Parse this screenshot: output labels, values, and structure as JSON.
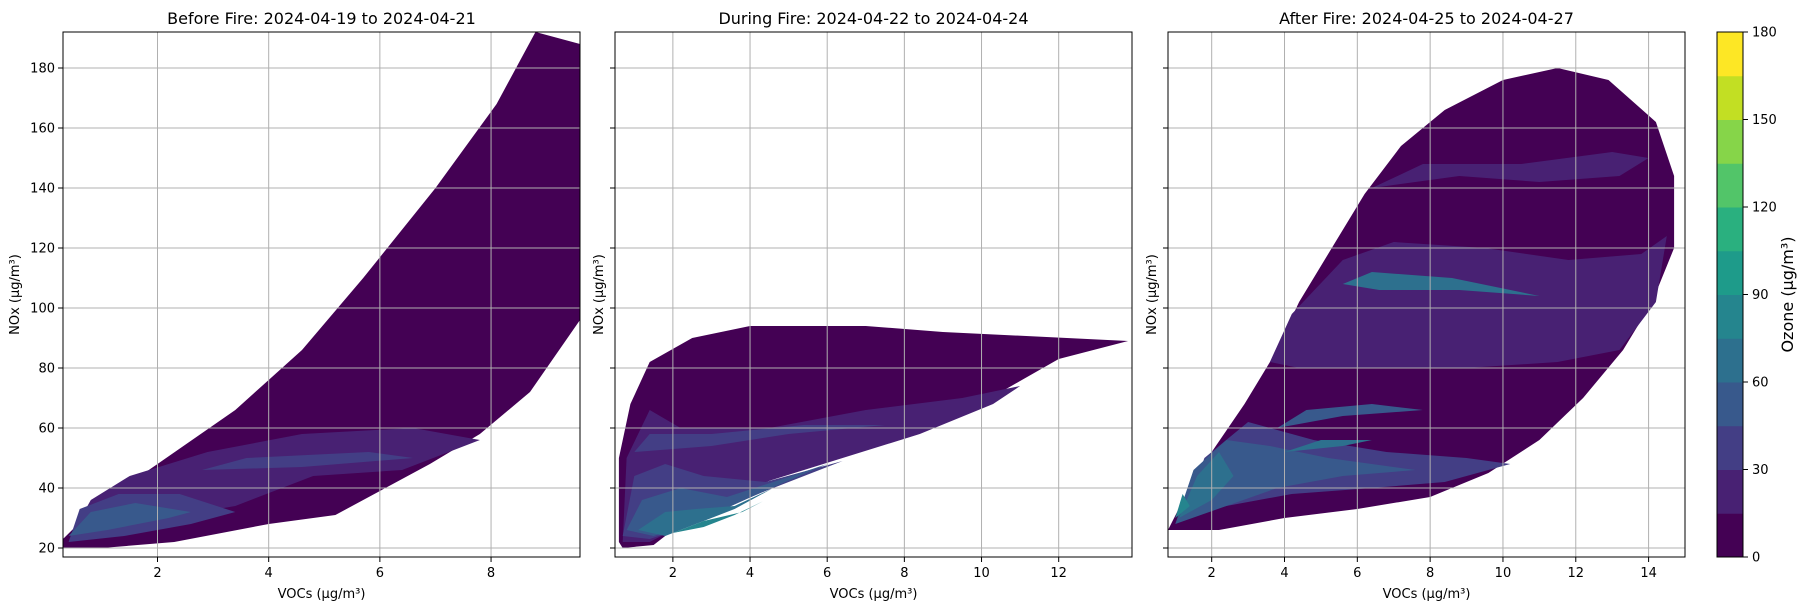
{
  "chart_data": [
    {
      "type": "contour",
      "title": "Before Fire: 2024-04-19 to 2024-04-21",
      "xlabel": "VOCs (µg/m³)",
      "ylabel": "NOx (µg/m³)",
      "xlim": [
        0.3,
        9.6
      ],
      "ylim": [
        17,
        192
      ],
      "xticks": [
        2,
        4,
        6,
        8
      ],
      "yticks": [
        20,
        40,
        60,
        80,
        100,
        120,
        140,
        160,
        180
      ],
      "grid": true,
      "region": [
        [
          0.3,
          23
        ],
        [
          0.9,
          34
        ],
        [
          2.0,
          48
        ],
        [
          3.4,
          66
        ],
        [
          4.6,
          86
        ],
        [
          5.7,
          110
        ],
        [
          7.0,
          140
        ],
        [
          8.1,
          168
        ],
        [
          8.8,
          192
        ],
        [
          9.6,
          188
        ],
        [
          9.6,
          96
        ],
        [
          8.7,
          72
        ],
        [
          7.8,
          58
        ],
        [
          6.9,
          48
        ],
        [
          5.2,
          31
        ],
        [
          4.0,
          28
        ],
        [
          2.3,
          22
        ],
        [
          1.0,
          20
        ],
        [
          0.3,
          20
        ]
      ],
      "patches": [
        {
          "level": 15,
          "points": [
            [
              0.5,
              26
            ],
            [
              1.5,
              28
            ],
            [
              3.4,
              34
            ],
            [
              4.8,
              44
            ],
            [
              6.4,
              46
            ],
            [
              7.8,
              56
            ],
            [
              6.6,
              60
            ],
            [
              4.6,
              58
            ],
            [
              2.9,
              52
            ],
            [
              1.5,
              44
            ],
            [
              0.8,
              36
            ]
          ]
        },
        {
          "level": 30,
          "points": [
            [
              0.4,
              22
            ],
            [
              1.4,
              24
            ],
            [
              2.6,
              28
            ],
            [
              3.4,
              32
            ],
            [
              2.4,
              38
            ],
            [
              1.3,
              38
            ],
            [
              0.6,
              33
            ]
          ]
        },
        {
          "level": 45,
          "points": [
            [
              0.4,
              24
            ],
            [
              1.1,
              26
            ],
            [
              2.2,
              30
            ],
            [
              2.6,
              32
            ],
            [
              1.6,
              35
            ],
            [
              0.8,
              32
            ]
          ]
        },
        {
          "level": 30,
          "points": [
            [
              2.8,
              46
            ],
            [
              4.6,
              47
            ],
            [
              6.6,
              50
            ],
            [
              5.8,
              52
            ],
            [
              3.6,
              50
            ]
          ]
        }
      ]
    },
    {
      "type": "contour",
      "title": "During Fire: 2024-04-22 to 2024-04-24",
      "xlabel": "VOCs (µg/m³)",
      "ylabel": "NOx (µg/m³)",
      "xlim": [
        0.5,
        13.9
      ],
      "ylim": [
        17,
        192
      ],
      "xticks": [
        2,
        4,
        6,
        8,
        10,
        12
      ],
      "yticks": [
        20,
        40,
        60,
        80,
        100,
        120,
        140,
        160,
        180
      ],
      "grid": true,
      "region": [
        [
          0.6,
          22
        ],
        [
          0.6,
          50
        ],
        [
          0.9,
          68
        ],
        [
          1.4,
          82
        ],
        [
          2.5,
          90
        ],
        [
          4.0,
          94
        ],
        [
          7.0,
          94
        ],
        [
          9.0,
          92
        ],
        [
          13.8,
          89
        ],
        [
          12.0,
          83
        ],
        [
          10.5,
          72
        ],
        [
          8.6,
          60
        ],
        [
          6.5,
          51
        ],
        [
          4.6,
          43
        ],
        [
          3.2,
          35
        ],
        [
          2.2,
          28
        ],
        [
          1.5,
          21
        ],
        [
          0.7,
          20
        ]
      ],
      "patches": [
        {
          "level": 15,
          "points": [
            [
              0.7,
              22
            ],
            [
              0.8,
              50
            ],
            [
              1.4,
              66
            ],
            [
              2.2,
              60
            ],
            [
              4.5,
              60
            ],
            [
              7.0,
              66
            ],
            [
              9.5,
              70
            ],
            [
              11.0,
              74
            ],
            [
              10.3,
              68
            ],
            [
              8.4,
              58
            ],
            [
              6.4,
              50
            ],
            [
              4.4,
              42
            ],
            [
              3.0,
              34
            ],
            [
              2.0,
              26
            ],
            [
              1.4,
              22
            ]
          ]
        },
        {
          "level": 30,
          "points": [
            [
              0.7,
              24
            ],
            [
              1.0,
              44
            ],
            [
              1.8,
              48
            ],
            [
              2.8,
              44
            ],
            [
              4.4,
              42
            ],
            [
              6.4,
              49
            ],
            [
              4.4,
              39
            ],
            [
              3.1,
              32
            ],
            [
              2.1,
              26
            ],
            [
              1.4,
              23
            ]
          ]
        },
        {
          "level": 30,
          "points": [
            [
              1.0,
              52
            ],
            [
              3.0,
              54
            ],
            [
              5.0,
              58
            ],
            [
              7.5,
              61
            ],
            [
              5.4,
              61
            ],
            [
              3.0,
              58
            ],
            [
              1.4,
              58
            ]
          ]
        },
        {
          "level": 45,
          "points": [
            [
              0.8,
              26
            ],
            [
              1.2,
              36
            ],
            [
              2.2,
              40
            ],
            [
              3.4,
              37
            ],
            [
              4.6,
              42
            ],
            [
              6.0,
              48
            ],
            [
              4.2,
              38
            ],
            [
              3.0,
              31
            ],
            [
              2.2,
              27
            ],
            [
              1.5,
              24
            ]
          ]
        },
        {
          "level": 60,
          "points": [
            [
              1.1,
              26
            ],
            [
              1.8,
              32
            ],
            [
              2.6,
              33
            ],
            [
              3.6,
              34
            ],
            [
              4.6,
              40
            ],
            [
              3.6,
              33
            ],
            [
              2.6,
              28
            ],
            [
              1.8,
              24
            ]
          ]
        },
        {
          "level": 75,
          "points": [
            [
              2.0,
              25
            ],
            [
              2.8,
              29
            ],
            [
              3.8,
              32
            ],
            [
              4.4,
              36
            ],
            [
              3.6,
              31
            ],
            [
              2.8,
              27
            ]
          ]
        }
      ]
    },
    {
      "type": "contour",
      "title": "After Fire: 2024-04-25 to 2024-04-27",
      "xlabel": "VOCs (µg/m³)",
      "ylabel": "NOx (µg/m³)",
      "xlim": [
        0.8,
        15.0
      ],
      "ylim": [
        17,
        192
      ],
      "xticks": [
        2,
        4,
        6,
        8,
        10,
        12,
        14
      ],
      "yticks": [
        20,
        40,
        60,
        80,
        100,
        120,
        140,
        160,
        180
      ],
      "grid": true,
      "region": [
        [
          0.8,
          26
        ],
        [
          1.3,
          38
        ],
        [
          2.0,
          52
        ],
        [
          2.9,
          68
        ],
        [
          3.7,
          84
        ],
        [
          4.4,
          102
        ],
        [
          5.3,
          120
        ],
        [
          6.2,
          138
        ],
        [
          7.2,
          154
        ],
        [
          8.4,
          166
        ],
        [
          10.0,
          176
        ],
        [
          11.5,
          180
        ],
        [
          12.9,
          176
        ],
        [
          14.2,
          162
        ],
        [
          14.7,
          144
        ],
        [
          14.7,
          120
        ],
        [
          14.1,
          102
        ],
        [
          13.3,
          86
        ],
        [
          12.2,
          70
        ],
        [
          11.0,
          56
        ],
        [
          9.6,
          45
        ],
        [
          8.0,
          37
        ],
        [
          6.0,
          33
        ],
        [
          4.0,
          30
        ],
        [
          2.2,
          26
        ],
        [
          0.8,
          26
        ]
      ],
      "patches": [
        {
          "level": 15,
          "points": [
            [
              3.6,
              82
            ],
            [
              4.2,
              98
            ],
            [
              5.6,
              116
            ],
            [
              7.0,
              122
            ],
            [
              9.5,
              120
            ],
            [
              11.8,
              116
            ],
            [
              13.8,
              118
            ],
            [
              14.5,
              124
            ],
            [
              14.2,
              102
            ],
            [
              13.2,
              86
            ],
            [
              11.5,
              82
            ],
            [
              9.0,
              80
            ],
            [
              6.0,
              80
            ],
            [
              4.4,
              80
            ]
          ]
        },
        {
          "level": 15,
          "points": [
            [
              6.4,
              140
            ],
            [
              8.8,
              144
            ],
            [
              11.0,
              142
            ],
            [
              13.2,
              144
            ],
            [
              14.0,
              150
            ],
            [
              13.0,
              152
            ],
            [
              10.5,
              148
            ],
            [
              7.8,
              148
            ]
          ]
        },
        {
          "level": 30,
          "points": [
            [
              1.2,
              30
            ],
            [
              2.4,
              34
            ],
            [
              4.2,
              38
            ],
            [
              6.4,
              40
            ],
            [
              8.4,
              42
            ],
            [
              10.2,
              48
            ],
            [
              9.0,
              50
            ],
            [
              6.8,
              52
            ],
            [
              4.8,
              56
            ],
            [
              3.0,
              62
            ],
            [
              1.8,
              50
            ]
          ]
        },
        {
          "level": 45,
          "points": [
            [
              1.0,
              28
            ],
            [
              2.4,
              34
            ],
            [
              3.8,
              40
            ],
            [
              5.6,
              44
            ],
            [
              7.6,
              46
            ],
            [
              5.2,
              50
            ],
            [
              3.6,
              54
            ],
            [
              2.4,
              56
            ],
            [
              1.5,
              46
            ]
          ]
        },
        {
          "level": 45,
          "points": [
            [
              3.8,
              60
            ],
            [
              5.6,
              64
            ],
            [
              7.8,
              66
            ],
            [
              6.4,
              68
            ],
            [
              4.6,
              66
            ]
          ]
        },
        {
          "level": 60,
          "points": [
            [
              1.1,
              30
            ],
            [
              2.0,
              36
            ],
            [
              2.6,
              44
            ],
            [
              2.2,
              52
            ],
            [
              1.6,
              44
            ]
          ]
        },
        {
          "level": 60,
          "points": [
            [
              4.0,
              52
            ],
            [
              5.6,
              54
            ],
            [
              6.4,
              56
            ],
            [
              5.0,
              56
            ]
          ]
        },
        {
          "level": 60,
          "points": [
            [
              5.6,
              108
            ],
            [
              6.4,
              112
            ],
            [
              8.6,
              110
            ],
            [
              11.0,
              104
            ],
            [
              8.8,
              106
            ],
            [
              6.6,
              106
            ]
          ]
        },
        {
          "level": 75,
          "points": [
            [
              1.0,
              30
            ],
            [
              1.4,
              34
            ],
            [
              1.2,
              38
            ]
          ]
        }
      ]
    }
  ],
  "colorbar": {
    "label": "Ozone (µg/m³)",
    "ticks": [
      0,
      30,
      60,
      90,
      120,
      150,
      180
    ],
    "levels": [
      0,
      15,
      30,
      45,
      60,
      75,
      90,
      105,
      120,
      135,
      150,
      165,
      180
    ],
    "colors": [
      "#440154",
      "#482173",
      "#433e85",
      "#38598c",
      "#2d708e",
      "#25858e",
      "#1e9b8a",
      "#2ab07f",
      "#52c569",
      "#86d549",
      "#c2df23",
      "#fde725"
    ]
  }
}
